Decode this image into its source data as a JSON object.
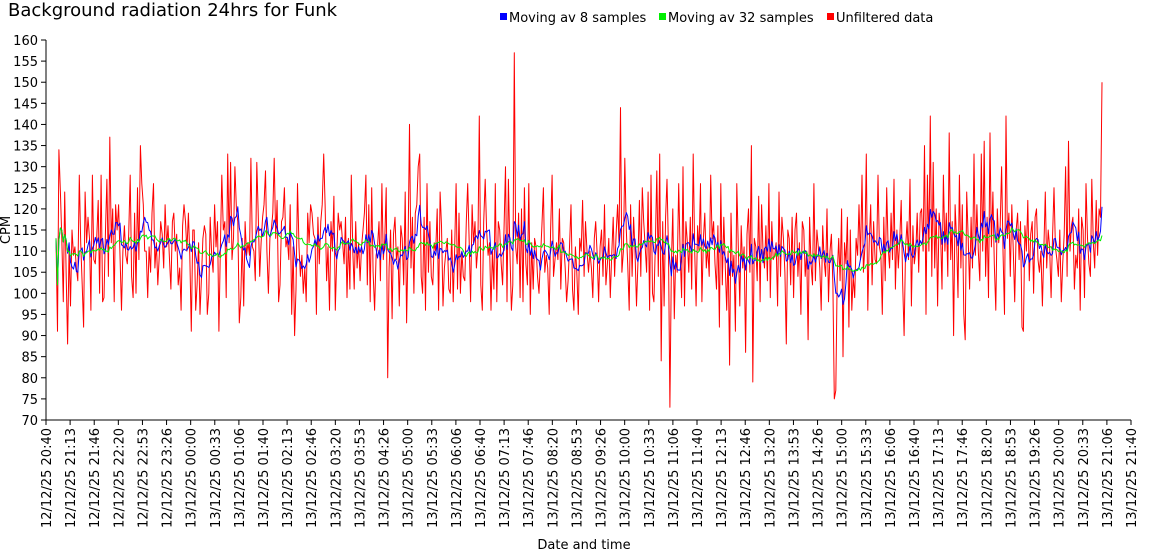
{
  "chart_data": {
    "type": "line",
    "title": "Background radiation 24hrs for Funk",
    "xlabel": "Date and time",
    "ylabel": "CPM",
    "ylim": [
      70,
      160
    ],
    "y_ticks": [
      "70",
      "75",
      "80",
      "85",
      "90",
      "95",
      "100",
      "105",
      "110",
      "115",
      "120",
      "125",
      "130",
      "135",
      "140",
      "145",
      "150",
      "155",
      "160"
    ],
    "x_ticks": [
      "12/12/25 20:40",
      "12/12/25 21:13",
      "12/12/25 21:46",
      "12/12/25 22:20",
      "12/12/25 22:53",
      "12/12/25 23:26",
      "13/12/25 00:00",
      "13/12/25 00:33",
      "13/12/25 01:06",
      "13/12/25 01:40",
      "13/12/25 02:13",
      "13/12/25 02:46",
      "13/12/25 03:20",
      "13/12/25 03:53",
      "13/12/25 04:26",
      "13/12/25 05:00",
      "13/12/25 05:33",
      "13/12/25 06:06",
      "13/12/25 06:40",
      "13/12/25 07:13",
      "13/12/25 07:46",
      "13/12/25 08:20",
      "13/12/25 08:53",
      "13/12/25 09:26",
      "13/12/25 10:00",
      "13/12/25 10:33",
      "13/12/25 11:06",
      "13/12/25 11:40",
      "13/12/25 12:13",
      "13/12/25 12:46",
      "13/12/25 13:20",
      "13/12/25 13:53",
      "13/12/25 14:26",
      "13/12/25 15:00",
      "13/12/25 15:33",
      "13/12/25 16:06",
      "13/12/25 16:40",
      "13/12/25 17:13",
      "13/12/25 17:46",
      "13/12/25 18:20",
      "13/12/25 18:53",
      "13/12/25 19:26",
      "13/12/25 20:00",
      "13/12/25 20:33",
      "13/12/25 21:06",
      "13/12/25 21:40"
    ],
    "legend_position": "top-right",
    "grid": false,
    "series": [
      {
        "name": "Moving av 8 samples",
        "color": "#0000ff"
      },
      {
        "name": "Moving av 32 samples",
        "color": "#00ee00"
      },
      {
        "name": "Unfiltered data",
        "color": "#ff0000",
        "values": [
          113,
          91,
          134,
          124,
          113,
          98,
          124,
          104,
          88,
          111,
          97,
          115,
          109,
          111,
          106,
          103,
          128,
          112,
          102,
          92,
          124,
          112,
          118,
          113,
          96,
          128,
          108,
          107,
          113,
          122,
          100,
          128,
          98,
          99,
          115,
          127,
          104,
          137,
          112,
          120,
          98,
          121,
          115,
          121,
          109,
          96,
          110,
          116,
          109,
          107,
          114,
          128,
          104,
          99,
          119,
          100,
          125,
          108,
          135,
          126,
          121,
          110,
          110,
          99,
          111,
          105,
          119,
          126,
          106,
          112,
          102,
          109,
          117,
          114,
          106,
          121,
          111,
          116,
          108,
          101,
          117,
          119,
          110,
          114,
          102,
          106,
          96,
          116,
          121,
          117,
          110,
          119,
          109,
          91,
          115,
          115,
          96,
          102,
          112,
          95,
          104,
          113,
          116,
          114,
          95,
          100,
          118,
          109,
          105,
          121,
          111,
          117,
          91,
          111,
          128,
          115,
          117,
          99,
          133,
          112,
          131,
          108,
          113,
          130,
          120,
          117,
          93,
          99,
          113,
          97,
          117,
          109,
          112,
          109,
          132,
          111,
          110,
          103,
          131,
          119,
          104,
          112,
          118,
          121,
          129,
          110,
          100,
          113,
          115,
          119,
          132,
          113,
          122,
          98,
          102,
          117,
          118,
          125,
          111,
          113,
          108,
          121,
          95,
          111,
          90,
          101,
          126,
          111,
          104,
          109,
          100,
          106,
          98,
          119,
          112,
          121,
          119,
          114,
          113,
          95,
          118,
          107,
          117,
          121,
          133,
          121,
          103,
          111,
          96,
          117,
          110,
          123,
          96,
          109,
          119,
          115,
          117,
          112,
          107,
          118,
          99,
          113,
          101,
          128,
          110,
          101,
          117,
          106,
          112,
          103,
          111,
          115,
          119,
          128,
          102,
          121,
          98,
          125,
          105,
          96,
          109,
          111,
          117,
          103,
          126,
          108,
          113,
          125,
          80,
          106,
          115,
          94,
          114,
          118,
          108,
          111,
          97,
          116,
          113,
          102,
          124,
          93,
          112,
          140,
          106,
          118,
          100,
          119,
          121,
          130,
          133,
          104,
          100,
          118,
          96,
          126,
          105,
          117,
          104,
          102,
          112,
          110,
          120,
          96,
          124,
          116,
          97,
          106,
          110,
          113,
          101,
          100,
          115,
          98,
          110,
          126,
          101,
          119,
          100,
          110,
          104,
          103,
          117,
          126,
          112,
          98,
          121,
          112,
          117,
          106,
          111,
          142,
          102,
          96,
          117,
          127,
          115,
          109,
          112,
          96,
          110,
          101,
          126,
          98,
          117,
          115,
          107,
          102,
          116,
          130,
          98,
          127,
          110,
          96,
          102,
          157,
          111,
          107,
          119,
          99,
          120,
          98,
          125,
          107,
          102,
          126,
          95,
          112,
          101,
          113,
          111,
          104,
          100,
          108,
          116,
          125,
          105,
          109,
          106,
          95,
          115,
          128,
          104,
          108,
          112,
          108,
          120,
          101,
          113,
          112,
          106,
          98,
          103,
          111,
          121,
          101,
          96,
          111,
          105,
          95,
          113,
          110,
          122,
          104,
          117,
          110,
          105,
          110,
          106,
          99,
          113,
          117,
          109,
          98,
          111,
          115,
          104,
          121,
          102,
          107,
          113,
          99,
          109,
          118,
          104,
          114,
          121,
          112,
          144,
          105,
          110,
          132,
          115,
          107,
          96,
          121,
          104,
          118,
          110,
          97,
          107,
          122,
          104,
          125,
          117,
          111,
          105,
          124,
          96,
          128,
          100,
          98,
          112,
          129,
          104,
          133,
          84,
          117,
          97,
          118,
          127,
          110,
          73,
          107,
          120,
          94,
          109,
          105,
          126,
          110,
          99,
          130,
          97,
          117,
          112,
          105,
          118,
          101,
          133,
          110,
          97,
          116,
          110,
          126,
          98,
          113,
          119,
          106,
          111,
          104,
          128,
          113,
          117,
          107,
          101,
          116,
          92,
          126,
          102,
          118,
          107,
          96,
          110,
          83,
          119,
          104,
          109,
          91,
          126,
          111,
          97,
          116,
          106,
          111,
          86,
          114,
          120,
          105,
          135,
          79,
          113,
          111,
          103,
          123,
          98,
          121,
          110,
          106,
          116,
          103,
          126,
          99,
          117,
          108,
          109,
          112,
          97,
          124,
          104,
          118,
          113,
          105,
          88,
          115,
          113,
          102,
          118,
          99,
          115,
          119,
          104,
          112,
          95,
          117,
          115,
          104,
          110,
          89,
          118,
          107,
          102,
          126,
          103,
          115,
          111,
          106,
          96,
          116,
          108,
          104,
          120,
          98,
          110,
          114,
          102,
          75,
          77,
          104,
          113,
          103,
          120,
          85,
          112,
          107,
          118,
          92,
          115,
          96,
          104,
          99,
          113,
          109,
          121,
          108,
          128,
          105,
          111,
          133,
          96,
          112,
          121,
          102,
          117,
          108,
          107,
          128,
          111,
          109,
          95,
          118,
          103,
          125,
          111,
          106,
          119,
          108,
          127,
          101,
          115,
          106,
          113,
          122,
          102,
          90,
          111,
          117,
          108,
          127,
          97,
          116,
          107,
          110,
          119,
          105,
          119,
          120,
          110,
          135,
          95,
          128,
          110,
          142,
          104,
          131,
          106,
          120,
          97,
          119,
          115,
          101,
          128,
          110,
          119,
          104,
          138,
          108,
          117,
          90,
          121,
          113,
          99,
          128,
          106,
          121,
          95,
          89,
          124,
          113,
          101,
          118,
          106,
          133,
          109,
          121,
          110,
          103,
          133,
          110,
          136,
          104,
          118,
          99,
          138,
          111,
          124,
          107,
          96,
          120,
          112,
          116,
          130,
          109,
          95,
          142,
          113,
          119,
          104,
          121,
          110,
          98,
          115,
          119,
          108,
          117,
          92,
          91,
          116,
          110,
          122,
          103,
          114,
          117,
          100,
          118,
          120,
          108,
          105,
          110,
          97,
          110,
          124,
          106,
          115,
          111,
          99,
          113,
          125,
          111,
          108,
          104,
          115,
          98,
          107,
          114,
          130,
          104,
          136,
          110,
          116,
          118,
          101,
          109,
          106,
          120,
          96,
          118,
          115,
          99,
          126,
          113,
          107,
          104,
          127,
          112,
          106,
          122,
          109,
          120,
          118,
          150
        ]
      }
    ]
  }
}
